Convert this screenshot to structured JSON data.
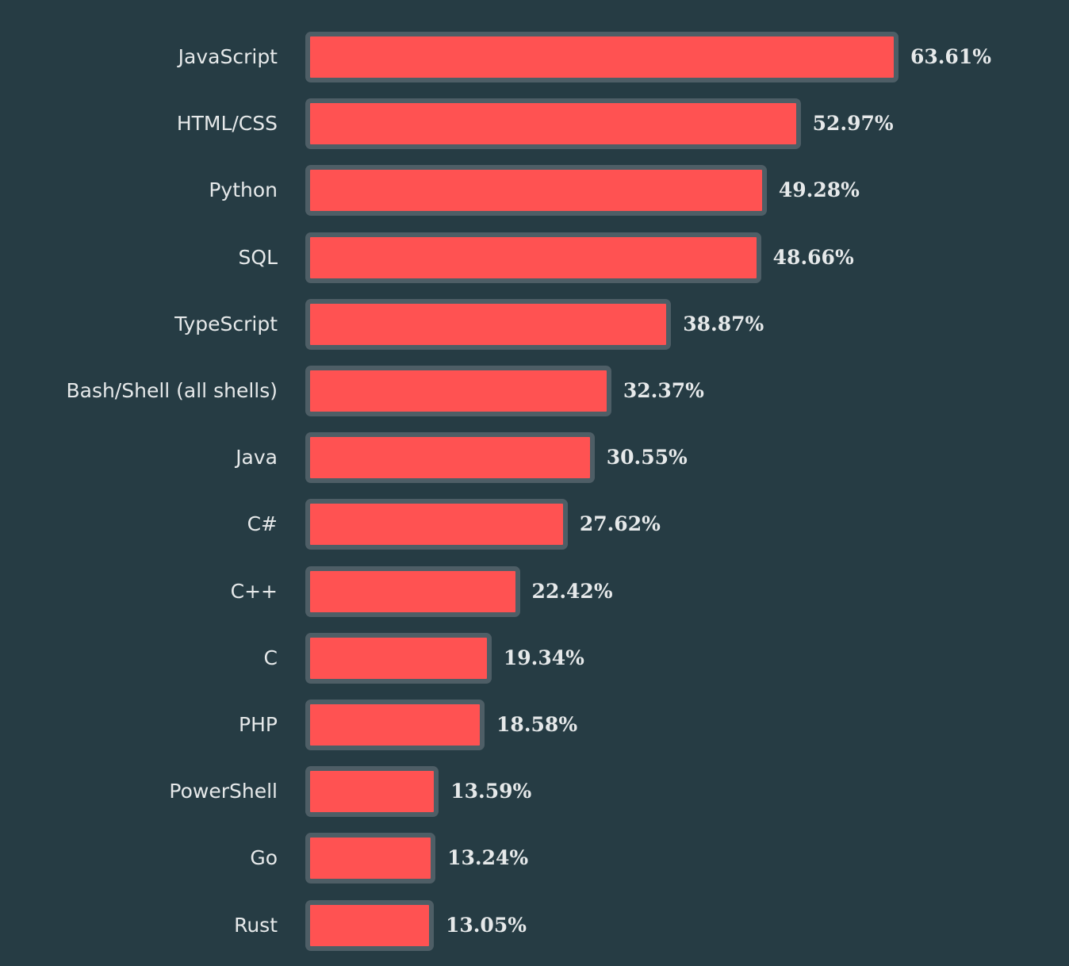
{
  "chart_data": {
    "type": "bar",
    "orientation": "horizontal",
    "categories": [
      "JavaScript",
      "HTML/CSS",
      "Python",
      "SQL",
      "TypeScript",
      "Bash/Shell (all shells)",
      "Java",
      "C#",
      "C++",
      "C",
      "PHP",
      "PowerShell",
      "Go",
      "Rust"
    ],
    "values": [
      63.61,
      52.97,
      49.28,
      48.66,
      38.87,
      32.37,
      30.55,
      27.62,
      22.42,
      19.34,
      18.58,
      13.59,
      13.24,
      13.05
    ],
    "value_labels": [
      "63.61%",
      "52.97%",
      "49.28%",
      "48.66%",
      "38.87%",
      "32.37%",
      "30.55%",
      "27.62%",
      "22.42%",
      "19.34%",
      "18.58%",
      "13.59%",
      "13.24%",
      "13.05%"
    ],
    "unit": "%",
    "grid": false,
    "colors": {
      "bar": "#ff5252",
      "bar_border": "#4e5e66",
      "background": "#263c44",
      "text": "#e6e9ea"
    }
  }
}
